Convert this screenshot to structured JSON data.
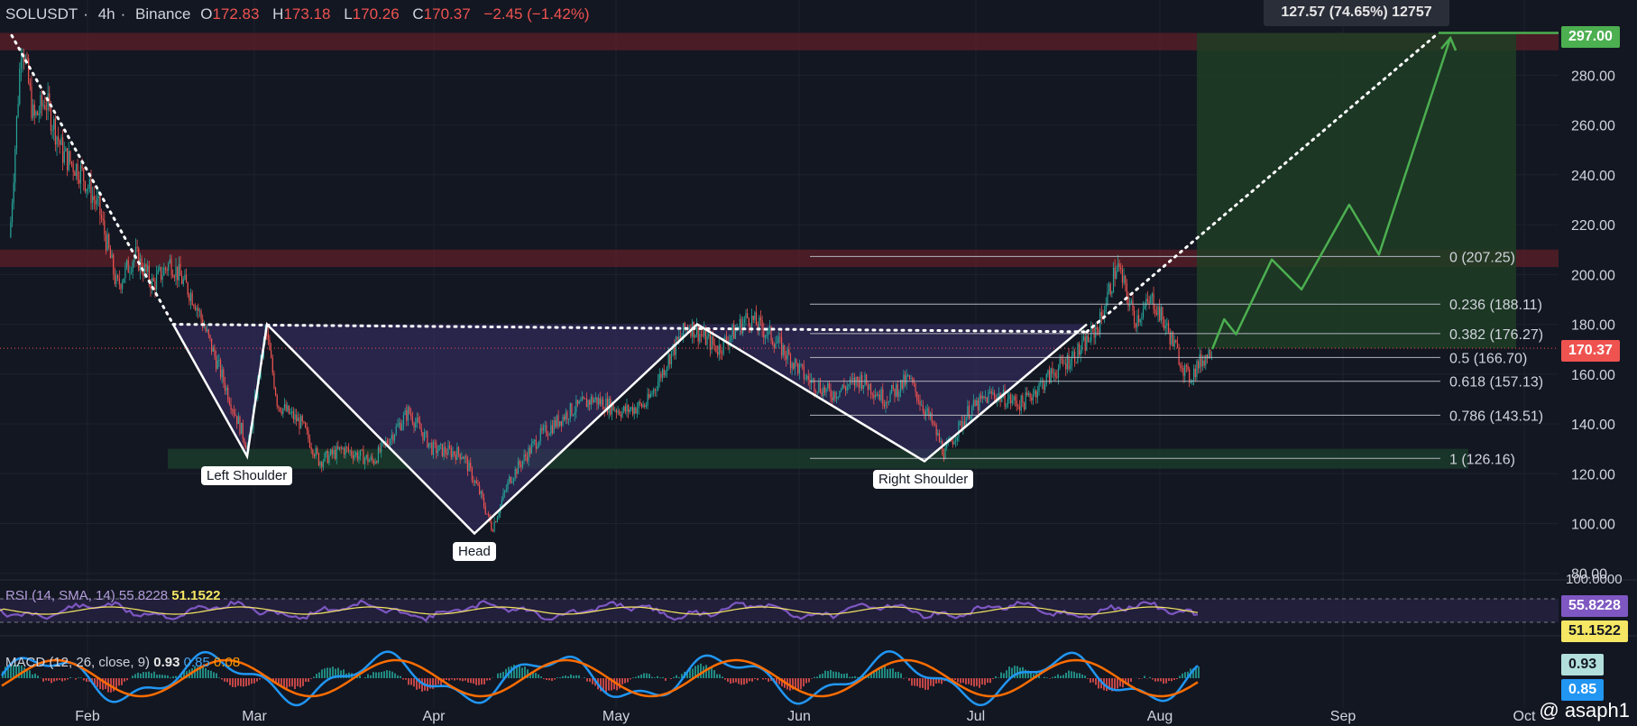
{
  "header": {
    "symbol": "SOLUSDT",
    "interval": "4h",
    "exchange": "Binance",
    "open_label": "O",
    "open": "172.83",
    "high_label": "H",
    "high": "173.18",
    "low_label": "L",
    "low": "170.26",
    "close_label": "C",
    "close": "170.37",
    "change": "−2.45 (−1.42%)"
  },
  "measure_label": "127.57 (74.65%) 12757",
  "price_tags": {
    "target": "297.00",
    "current": "170.37",
    "rsi_value": "55.8228",
    "rsi_sma": "51.1522",
    "macd_value": "0.93",
    "macd_signal": "0.85"
  },
  "rsi_legend": {
    "label": "RSI (14, SMA, 14)",
    "value": "55.8228",
    "sma": "51.1522",
    "scale_top": "100.0000"
  },
  "macd_legend": {
    "label": "MACD (12, 26, close, 9)",
    "macd": "0.93",
    "signal": "0.85",
    "hist": "0.08"
  },
  "pattern_labels": {
    "left_shoulder": "Left Shoulder",
    "head": "Head",
    "right_shoulder": "Right Shoulder"
  },
  "watermark": "@ asaph1",
  "colors": {
    "background": "#131722",
    "grid": "#1e222d",
    "up": "#26a69a",
    "down": "#ef5350",
    "target": "#4caf50",
    "rsi": "#7e57c2",
    "macd": "#2196f3",
    "signal": "#ff6d00"
  },
  "chart_data": {
    "type": "candlestick",
    "symbol": "SOLUSDT",
    "interval": "4h",
    "x_ticks": [
      "Feb",
      "Mar",
      "Apr",
      "May",
      "Jun",
      "Jul",
      "Aug",
      "Sep",
      "Oct"
    ],
    "y_ticks": [
      80,
      100,
      120,
      140,
      160,
      180,
      200,
      220,
      240,
      260,
      280,
      297
    ],
    "ylim": [
      80,
      300
    ],
    "price_path": [
      {
        "date": "Jan 19",
        "price": 215
      },
      {
        "date": "Jan 21",
        "price": 296
      },
      {
        "date": "Jan 23",
        "price": 262
      },
      {
        "date": "Jan 25",
        "price": 270
      },
      {
        "date": "Jan 28",
        "price": 248
      },
      {
        "date": "Jan 31",
        "price": 241
      },
      {
        "date": "Feb 03",
        "price": 226
      },
      {
        "date": "Feb 06",
        "price": 195
      },
      {
        "date": "Feb 09",
        "price": 208
      },
      {
        "date": "Feb 12",
        "price": 196
      },
      {
        "date": "Feb 15",
        "price": 205
      },
      {
        "date": "Feb 19",
        "price": 190
      },
      {
        "date": "Feb 22",
        "price": 170
      },
      {
        "date": "Feb 25",
        "price": 150
      },
      {
        "date": "Feb 28",
        "price": 130
      },
      {
        "date": "Mar 02",
        "price": 178
      },
      {
        "date": "Mar 04",
        "price": 148
      },
      {
        "date": "Mar 08",
        "price": 140
      },
      {
        "date": "Mar 11",
        "price": 125
      },
      {
        "date": "Mar 15",
        "price": 130
      },
      {
        "date": "Mar 20",
        "price": 125
      },
      {
        "date": "Mar 26",
        "price": 145
      },
      {
        "date": "Mar 30",
        "price": 130
      },
      {
        "date": "Apr 04",
        "price": 128
      },
      {
        "date": "Apr 07",
        "price": 112
      },
      {
        "date": "Apr 09",
        "price": 98
      },
      {
        "date": "Apr 12",
        "price": 118
      },
      {
        "date": "Apr 17",
        "price": 135
      },
      {
        "date": "Apr 22",
        "price": 145
      },
      {
        "date": "Apr 26",
        "price": 150
      },
      {
        "date": "May 01",
        "price": 145
      },
      {
        "date": "May 05",
        "price": 148
      },
      {
        "date": "May 09",
        "price": 168
      },
      {
        "date": "May 12",
        "price": 180
      },
      {
        "date": "May 17",
        "price": 170
      },
      {
        "date": "May 22",
        "price": 183
      },
      {
        "date": "May 26",
        "price": 175
      },
      {
        "date": "Jun 01",
        "price": 158
      },
      {
        "date": "Jun 05",
        "price": 152
      },
      {
        "date": "Jun 10",
        "price": 158
      },
      {
        "date": "Jun 14",
        "price": 150
      },
      {
        "date": "Jun 18",
        "price": 158
      },
      {
        "date": "Jun 22",
        "price": 140
      },
      {
        "date": "Jun 24",
        "price": 128
      },
      {
        "date": "Jun 28",
        "price": 145
      },
      {
        "date": "Jul 02",
        "price": 152
      },
      {
        "date": "Jul 07",
        "price": 148
      },
      {
        "date": "Jul 12",
        "price": 160
      },
      {
        "date": "Jul 17",
        "price": 170
      },
      {
        "date": "Jul 20",
        "price": 180
      },
      {
        "date": "Jul 23",
        "price": 204
      },
      {
        "date": "Jul 26",
        "price": 182
      },
      {
        "date": "Jul 29",
        "price": 190
      },
      {
        "date": "Aug 01",
        "price": 175
      },
      {
        "date": "Aug 04",
        "price": 158
      },
      {
        "date": "Aug 06",
        "price": 165
      },
      {
        "date": "Aug 08",
        "price": 170
      }
    ],
    "projection_path": [
      {
        "date": "Aug 08",
        "price": 170
      },
      {
        "date": "Aug 10",
        "price": 182
      },
      {
        "date": "Aug 12",
        "price": 176
      },
      {
        "date": "Aug 18",
        "price": 206
      },
      {
        "date": "Aug 23",
        "price": 194
      },
      {
        "date": "Aug 31",
        "price": 228
      },
      {
        "date": "Sep 05",
        "price": 208
      },
      {
        "date": "Sep 17",
        "price": 295
      }
    ],
    "neckline": 180,
    "resistance_zones": [
      {
        "low": 290,
        "high": 297
      },
      {
        "low": 203,
        "high": 210
      }
    ],
    "support_zone": {
      "low": 122,
      "high": 130
    },
    "target_price": 297,
    "current_price": 170.37,
    "fibonacci": [
      {
        "level": "0",
        "price": 207.25
      },
      {
        "level": "0.236",
        "price": 188.11
      },
      {
        "level": "0.382",
        "price": 176.27
      },
      {
        "level": "0.5",
        "price": 166.7
      },
      {
        "level": "0.618",
        "price": 157.13
      },
      {
        "level": "0.786",
        "price": 143.51
      },
      {
        "level": "1",
        "price": 126.16
      }
    ],
    "pattern": {
      "left_shoulder": {
        "date": "Feb 28",
        "price": 127
      },
      "head": {
        "date": "Apr 09",
        "price": 96
      },
      "right_shoulder": {
        "date": "Jun 24",
        "price": 125
      }
    },
    "measurement": {
      "change": 127.57,
      "percent": 74.65,
      "ticks": 12757
    },
    "rsi": {
      "length": 14,
      "smoothing": "SMA",
      "smoothing_length": 14,
      "value": 55.8228,
      "sma": 51.1522
    },
    "macd": {
      "fast": 12,
      "slow": 26,
      "source": "close",
      "signal_length": 9,
      "macd": 0.93,
      "signal": 0.85,
      "hist": 0.08
    }
  }
}
